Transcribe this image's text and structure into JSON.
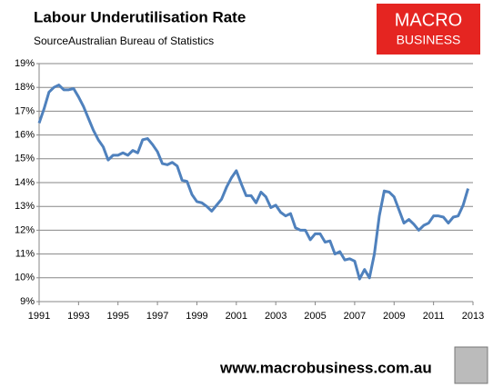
{
  "chart_data": {
    "type": "line",
    "title": "Labour Underutilisation Rate",
    "subtitle": "SourceAustralian Bureau of Statistics",
    "logo": [
      "MACRO",
      "BUSINESS"
    ],
    "footer": "www.macrobusiness.com.au",
    "color": "#4f81bd",
    "grid": true,
    "xlim": [
      1991,
      2013
    ],
    "xticks": [
      1991,
      1993,
      1995,
      1997,
      1999,
      2001,
      2003,
      2005,
      2007,
      2009,
      2011,
      2013
    ],
    "ylim": [
      9,
      19
    ],
    "yticks": [
      {
        "value": 9,
        "label": "9%"
      },
      {
        "value": 10,
        "label": "10%"
      },
      {
        "value": 11,
        "label": "11%"
      },
      {
        "value": 12,
        "label": "12%"
      },
      {
        "value": 13,
        "label": "13%"
      },
      {
        "value": 14,
        "label": "14%"
      },
      {
        "value": 15,
        "label": "15%"
      },
      {
        "value": 16,
        "label": "16%"
      },
      {
        "value": 17,
        "label": "17%"
      },
      {
        "value": 18,
        "label": "18%"
      },
      {
        "value": 19,
        "label": "19%"
      }
    ],
    "x": [
      1991.0,
      1991.25,
      1991.5,
      1991.75,
      1992.0,
      1992.25,
      1992.5,
      1992.75,
      1993.0,
      1993.25,
      1993.5,
      1993.75,
      1994.0,
      1994.25,
      1994.5,
      1994.75,
      1995.0,
      1995.25,
      1995.5,
      1995.75,
      1996.0,
      1996.25,
      1996.5,
      1996.75,
      1997.0,
      1997.25,
      1997.5,
      1997.75,
      1998.0,
      1998.25,
      1998.5,
      1998.75,
      1999.0,
      1999.25,
      1999.5,
      1999.75,
      2000.0,
      2000.25,
      2000.5,
      2000.75,
      2001.0,
      2001.25,
      2001.5,
      2001.75,
      2002.0,
      2002.25,
      2002.5,
      2002.75,
      2003.0,
      2003.25,
      2003.5,
      2003.75,
      2004.0,
      2004.25,
      2004.5,
      2004.75,
      2005.0,
      2005.25,
      2005.5,
      2005.75,
      2006.0,
      2006.25,
      2006.5,
      2006.75,
      2007.0,
      2007.25,
      2007.5,
      2007.75,
      2008.0,
      2008.25,
      2008.5,
      2008.75,
      2009.0,
      2009.25,
      2009.5,
      2009.75,
      2010.0,
      2010.25,
      2010.5,
      2010.75,
      2011.0,
      2011.25,
      2011.5,
      2011.75,
      2012.0,
      2012.25,
      2012.5,
      2012.75
    ],
    "values": [
      16.5,
      17.1,
      17.8,
      18.0,
      18.1,
      17.9,
      17.9,
      17.95,
      17.6,
      17.2,
      16.7,
      16.2,
      15.8,
      15.5,
      14.95,
      15.15,
      15.15,
      15.25,
      15.15,
      15.35,
      15.25,
      15.8,
      15.85,
      15.6,
      15.3,
      14.8,
      14.75,
      14.85,
      14.7,
      14.1,
      14.05,
      13.5,
      13.2,
      13.15,
      13.0,
      12.8,
      13.05,
      13.3,
      13.8,
      14.2,
      14.5,
      13.95,
      13.45,
      13.45,
      13.15,
      13.6,
      13.4,
      12.95,
      13.05,
      12.75,
      12.6,
      12.7,
      12.1,
      12.0,
      12.0,
      11.6,
      11.85,
      11.85,
      11.5,
      11.55,
      11.0,
      11.1,
      10.75,
      10.8,
      10.7,
      9.95,
      10.35,
      10.0,
      11.0,
      12.6,
      13.65,
      13.6,
      13.4,
      12.85,
      12.3,
      12.45,
      12.25,
      12.0,
      12.2,
      12.3,
      12.6,
      12.6,
      12.55,
      12.3,
      12.55,
      12.6,
      13.05,
      13.75
    ]
  }
}
